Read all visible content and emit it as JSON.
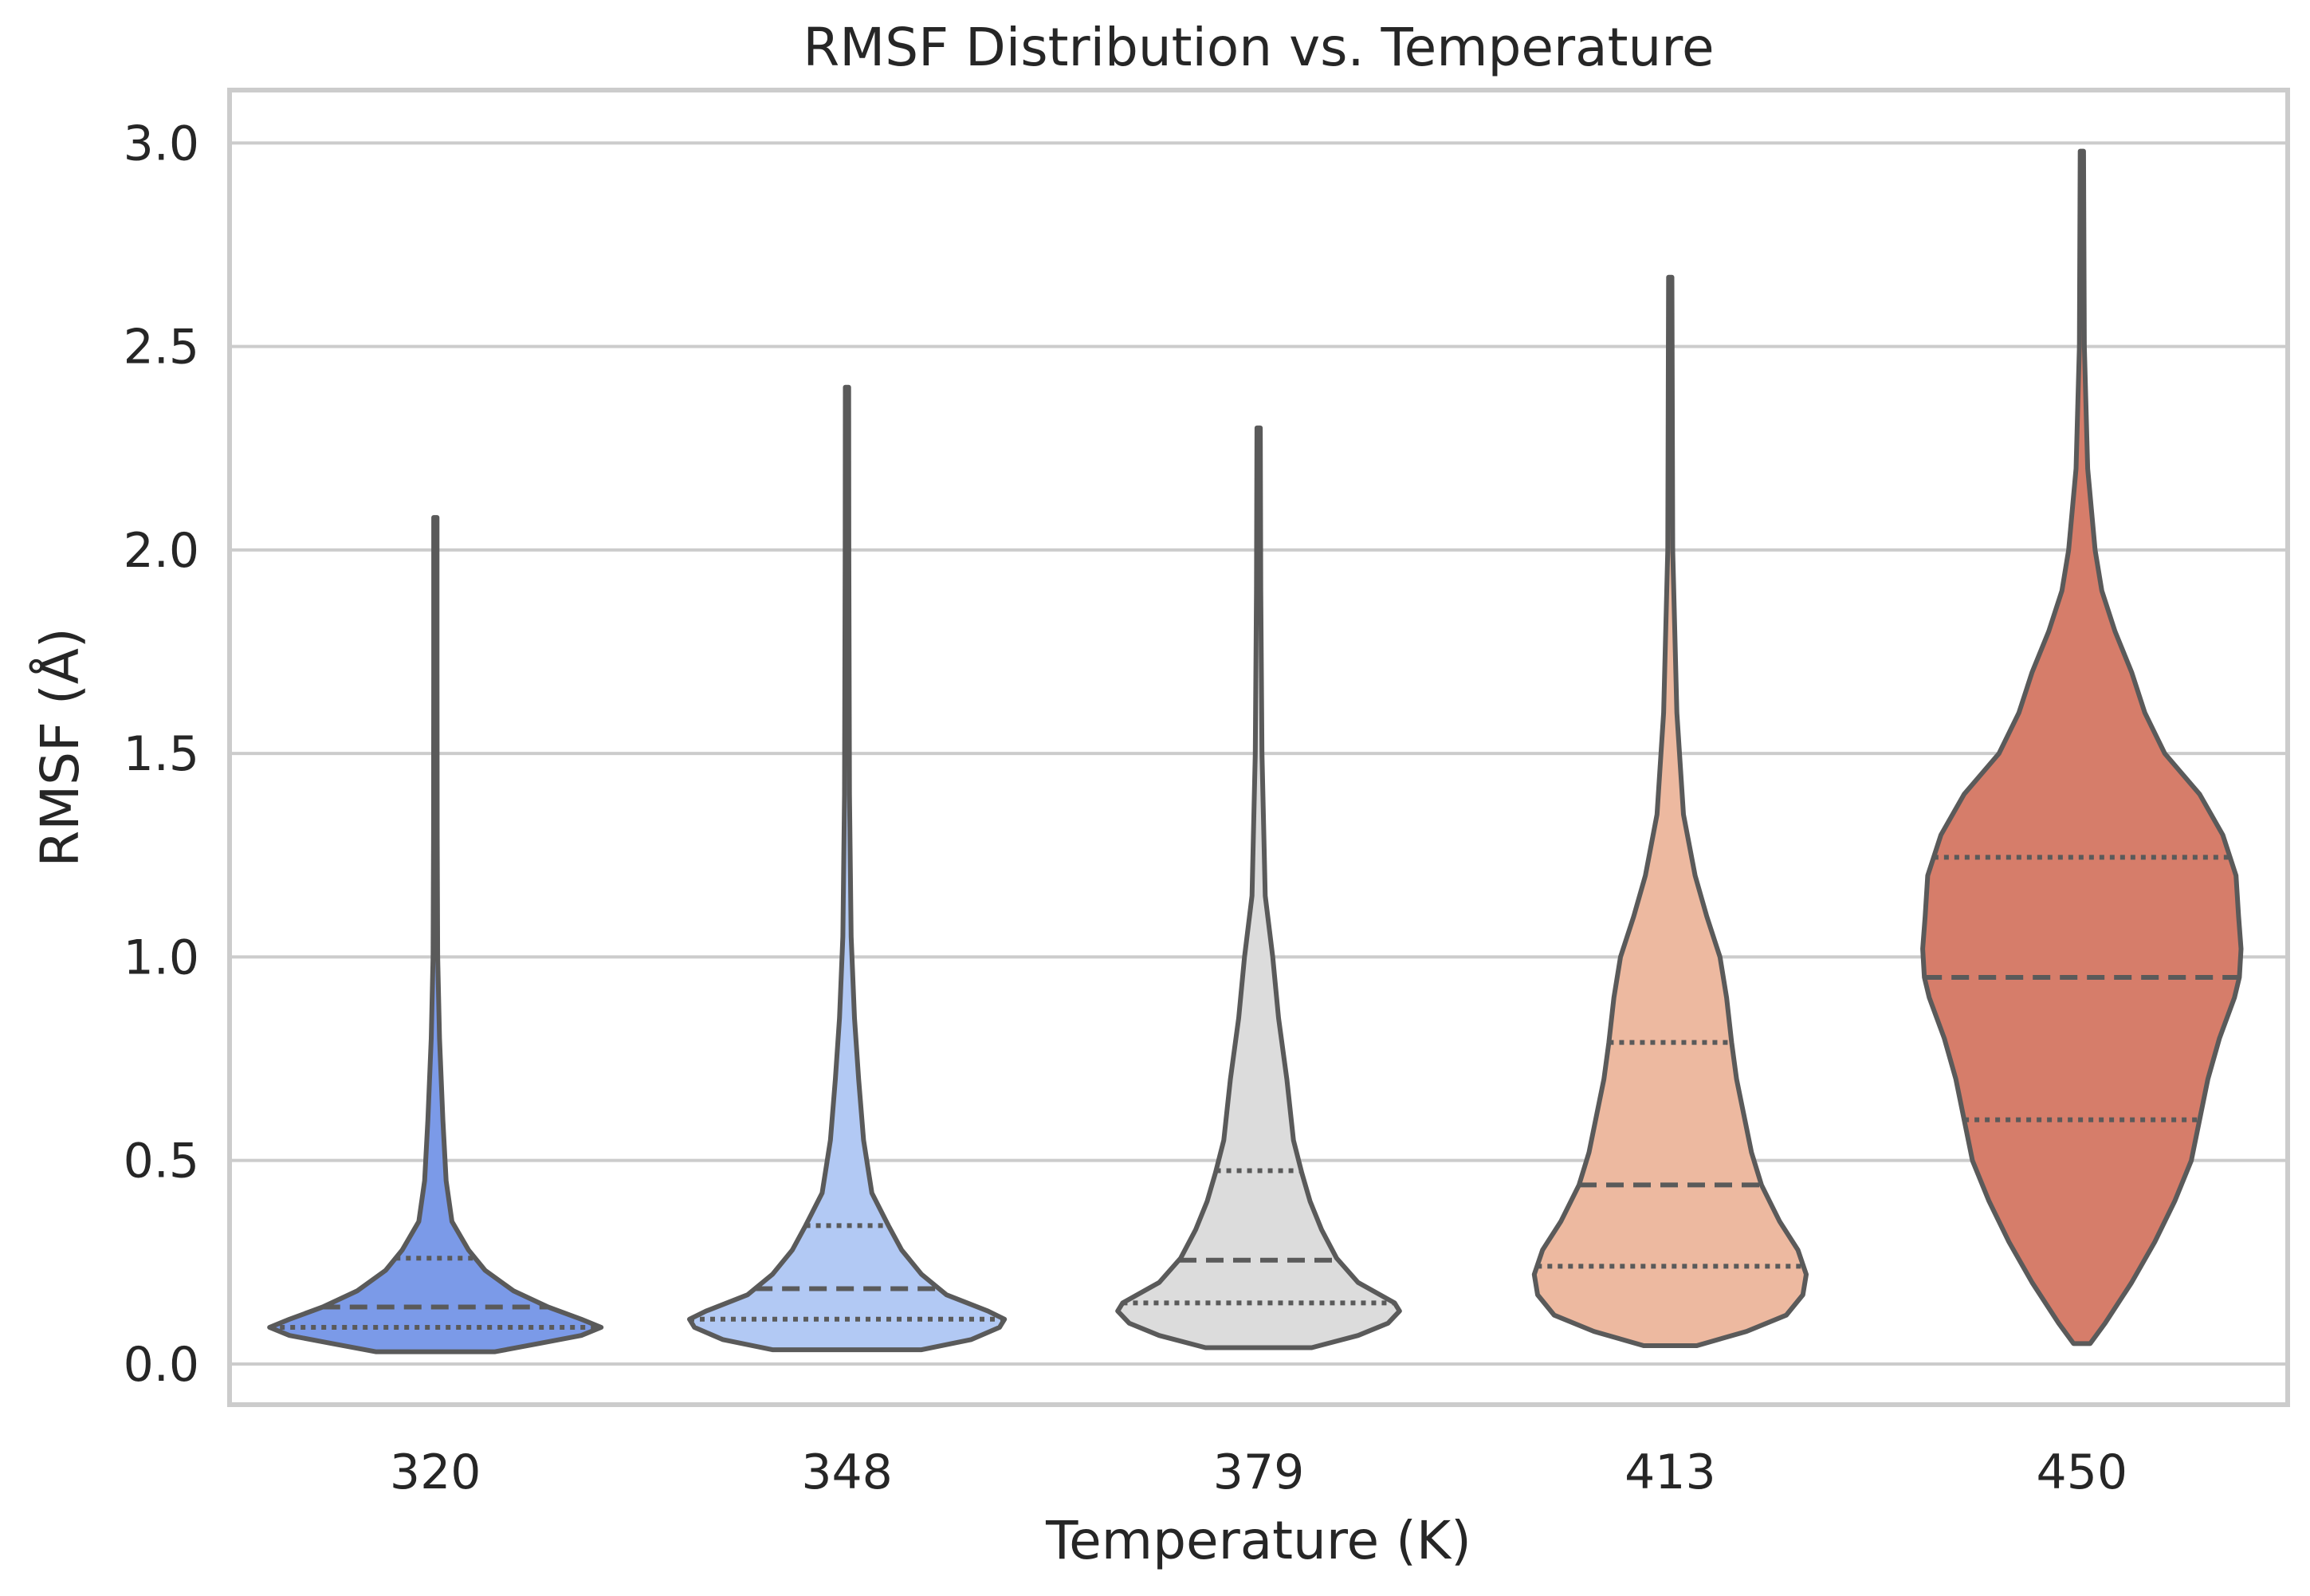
{
  "chart_data": {
    "type": "violin",
    "title": "RMSF Distribution vs. Temperature",
    "xlabel": "Temperature (K)",
    "ylabel": "RMSF (Å)",
    "categories": [
      "320",
      "348",
      "379",
      "413",
      "450"
    ],
    "yticks": [
      "0.0",
      "0.5",
      "1.0",
      "1.5",
      "2.0",
      "2.5",
      "3.0"
    ],
    "ylim": [
      -0.1,
      3.13
    ],
    "grid": true,
    "colors": [
      "#7b9ae8",
      "#b2c9f4",
      "#dcdcdc",
      "#edb9a0",
      "#d67d6a"
    ],
    "outline_color": "#5a5a5a",
    "series": [
      {
        "category": "320",
        "min": 0.03,
        "max": 2.08,
        "q1": 0.09,
        "median": 0.14,
        "q3": 0.26,
        "profile": [
          [
            0.03,
            0.36
          ],
          [
            0.05,
            0.62
          ],
          [
            0.07,
            0.88
          ],
          [
            0.09,
            1.0
          ],
          [
            0.11,
            0.88
          ],
          [
            0.14,
            0.68
          ],
          [
            0.18,
            0.47
          ],
          [
            0.23,
            0.3
          ],
          [
            0.28,
            0.2
          ],
          [
            0.35,
            0.1
          ],
          [
            0.45,
            0.065
          ],
          [
            0.6,
            0.045
          ],
          [
            0.8,
            0.025
          ],
          [
            1.0,
            0.014
          ],
          [
            1.3,
            0.011
          ],
          [
            1.7,
            0.01
          ],
          [
            2.08,
            0.01
          ]
        ]
      },
      {
        "category": "348",
        "min": 0.035,
        "max": 2.4,
        "q1": 0.11,
        "median": 0.185,
        "q3": 0.34,
        "profile": [
          [
            0.035,
            0.45
          ],
          [
            0.06,
            0.75
          ],
          [
            0.09,
            0.92
          ],
          [
            0.11,
            0.95
          ],
          [
            0.13,
            0.85
          ],
          [
            0.17,
            0.6
          ],
          [
            0.22,
            0.45
          ],
          [
            0.28,
            0.33
          ],
          [
            0.34,
            0.25
          ],
          [
            0.42,
            0.15
          ],
          [
            0.55,
            0.1
          ],
          [
            0.7,
            0.07
          ],
          [
            0.85,
            0.045
          ],
          [
            1.05,
            0.025
          ],
          [
            1.4,
            0.015
          ],
          [
            2.0,
            0.011
          ],
          [
            2.4,
            0.01
          ]
        ]
      },
      {
        "category": "379",
        "min": 0.04,
        "max": 2.3,
        "q1": 0.15,
        "median": 0.255,
        "q3": 0.475,
        "profile": [
          [
            0.04,
            0.32
          ],
          [
            0.07,
            0.6
          ],
          [
            0.1,
            0.78
          ],
          [
            0.13,
            0.85
          ],
          [
            0.15,
            0.82
          ],
          [
            0.2,
            0.6
          ],
          [
            0.26,
            0.47
          ],
          [
            0.33,
            0.38
          ],
          [
            0.4,
            0.31
          ],
          [
            0.47,
            0.26
          ],
          [
            0.55,
            0.21
          ],
          [
            0.7,
            0.17
          ],
          [
            0.85,
            0.12
          ],
          [
            1.0,
            0.085
          ],
          [
            1.15,
            0.04
          ],
          [
            1.5,
            0.02
          ],
          [
            1.9,
            0.013
          ],
          [
            2.3,
            0.01
          ]
        ]
      },
      {
        "category": "413",
        "min": 0.045,
        "max": 2.67,
        "q1": 0.24,
        "median": 0.44,
        "q3": 0.79,
        "profile": [
          [
            0.045,
            0.16
          ],
          [
            0.08,
            0.46
          ],
          [
            0.12,
            0.7
          ],
          [
            0.17,
            0.8
          ],
          [
            0.22,
            0.82
          ],
          [
            0.28,
            0.77
          ],
          [
            0.35,
            0.66
          ],
          [
            0.44,
            0.55
          ],
          [
            0.52,
            0.49
          ],
          [
            0.6,
            0.45
          ],
          [
            0.7,
            0.4
          ],
          [
            0.79,
            0.37
          ],
          [
            0.9,
            0.34
          ],
          [
            1.0,
            0.3
          ],
          [
            1.1,
            0.22
          ],
          [
            1.2,
            0.15
          ],
          [
            1.35,
            0.08
          ],
          [
            1.6,
            0.04
          ],
          [
            2.0,
            0.015
          ],
          [
            2.67,
            0.01
          ]
        ]
      },
      {
        "category": "450",
        "min": 0.05,
        "max": 2.98,
        "q1": 0.6,
        "median": 0.95,
        "q3": 1.245,
        "profile": [
          [
            0.05,
            0.05
          ],
          [
            0.1,
            0.14
          ],
          [
            0.2,
            0.3
          ],
          [
            0.3,
            0.44
          ],
          [
            0.4,
            0.56
          ],
          [
            0.5,
            0.66
          ],
          [
            0.6,
            0.71
          ],
          [
            0.7,
            0.76
          ],
          [
            0.8,
            0.83
          ],
          [
            0.9,
            0.92
          ],
          [
            0.95,
            0.95
          ],
          [
            1.02,
            0.96
          ],
          [
            1.1,
            0.945
          ],
          [
            1.2,
            0.93
          ],
          [
            1.3,
            0.85
          ],
          [
            1.4,
            0.71
          ],
          [
            1.5,
            0.5
          ],
          [
            1.6,
            0.38
          ],
          [
            1.7,
            0.3
          ],
          [
            1.8,
            0.2
          ],
          [
            1.9,
            0.12
          ],
          [
            2.0,
            0.08
          ],
          [
            2.2,
            0.035
          ],
          [
            2.5,
            0.015
          ],
          [
            2.98,
            0.01
          ]
        ]
      }
    ]
  }
}
